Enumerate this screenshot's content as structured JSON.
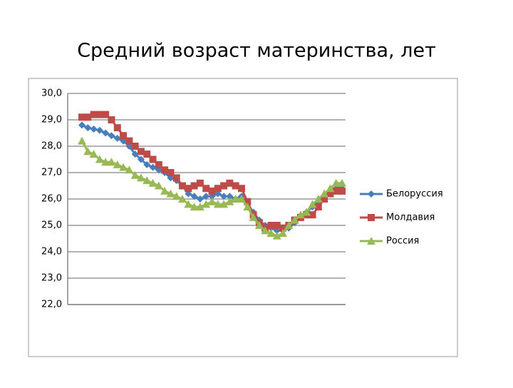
{
  "chart_data": {
    "type": "line",
    "title": "Средний возраст материнства, лет",
    "categories": [
      null,
      null,
      null,
      null,
      null,
      null,
      null,
      null,
      null,
      null,
      null,
      null,
      null,
      null,
      null,
      null,
      null,
      null,
      null,
      null,
      null,
      null,
      null,
      null,
      null,
      null,
      null,
      null,
      null,
      null,
      null,
      null,
      null,
      null,
      null,
      null,
      null,
      null,
      null,
      null,
      null,
      null,
      null,
      null,
      null
    ],
    "series": [
      {
        "name": "Белоруссия",
        "color": "#4a7ebb",
        "marker": "diamond",
        "values": [
          28.8,
          28.7,
          28.65,
          28.6,
          28.5,
          28.4,
          28.3,
          28.2,
          28.0,
          27.7,
          27.5,
          27.3,
          27.2,
          27.1,
          27.0,
          26.8,
          26.7,
          26.5,
          26.2,
          26.1,
          26.0,
          26.1,
          26.1,
          26.2,
          26.1,
          26.1,
          26.0,
          26.1,
          25.8,
          25.5,
          25.2,
          25.0,
          24.9,
          24.8,
          24.8,
          24.9,
          25.1,
          25.3,
          25.5,
          25.7,
          25.9,
          26.1,
          26.3,
          26.4,
          26.5
        ]
      },
      {
        "name": "Молдавия",
        "color": "#be4b48",
        "marker": "square",
        "values": [
          29.1,
          29.1,
          29.2,
          29.2,
          29.2,
          29.0,
          28.7,
          28.4,
          28.2,
          28.0,
          27.8,
          27.7,
          27.5,
          27.3,
          27.1,
          27.0,
          26.8,
          26.5,
          26.4,
          26.5,
          26.6,
          26.4,
          26.3,
          26.4,
          26.5,
          26.6,
          26.5,
          26.4,
          25.9,
          25.4,
          25.1,
          24.9,
          25.0,
          25.0,
          24.9,
          25.0,
          25.2,
          25.3,
          25.4,
          25.4,
          25.7,
          26.0,
          26.2,
          26.3,
          26.3
        ]
      },
      {
        "name": "Россия",
        "color": "#98b954",
        "marker": "triangle",
        "values": [
          28.2,
          27.8,
          27.7,
          27.5,
          27.4,
          27.4,
          27.3,
          27.2,
          27.1,
          26.9,
          26.8,
          26.7,
          26.6,
          26.5,
          26.3,
          26.2,
          26.1,
          26.0,
          25.8,
          25.7,
          25.7,
          25.8,
          25.9,
          25.8,
          25.8,
          25.9,
          26.0,
          26.0,
          25.7,
          25.3,
          25.0,
          24.8,
          24.7,
          24.6,
          24.7,
          25.0,
          25.2,
          25.4,
          25.5,
          25.8,
          26.0,
          26.2,
          26.4,
          26.6,
          26.6
        ]
      }
    ],
    "ylim": [
      22,
      30
    ],
    "yticks": [
      {
        "value": 22,
        "label": "22,0"
      },
      {
        "value": 23,
        "label": "23,0"
      },
      {
        "value": 24,
        "label": "24,0"
      },
      {
        "value": 25,
        "label": "25,0"
      },
      {
        "value": 26,
        "label": "26,0"
      },
      {
        "value": 27,
        "label": "27,0"
      },
      {
        "value": 28,
        "label": "28,0"
      },
      {
        "value": 29,
        "label": "29,0"
      },
      {
        "value": 30,
        "label": "30,0"
      }
    ],
    "grid": true,
    "legend": "right"
  }
}
